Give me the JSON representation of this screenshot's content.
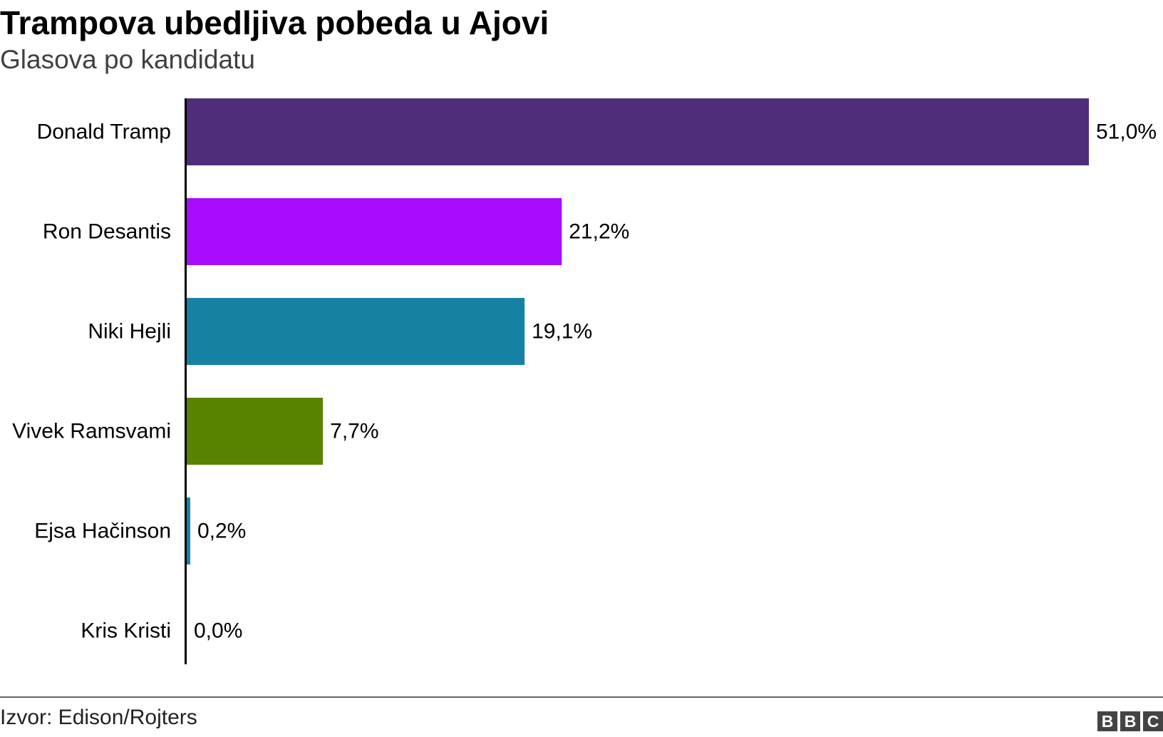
{
  "header": {
    "title": "Trampova ubedljiva pobeda u Ajovi",
    "subtitle": "Glasova po kandidatu"
  },
  "footer": {
    "source": "Izvor: Edison/Rojters",
    "logo": [
      "B",
      "B",
      "C"
    ]
  },
  "chart_data": {
    "type": "bar",
    "orientation": "horizontal",
    "title": "Trampova ubedljiva pobeda u Ajovi",
    "subtitle": "Glasova po kandidatu",
    "categories": [
      "Donald Tramp",
      "Ron Desantis",
      "Niki Hejli",
      "Vivek Ramsvami",
      "Ejsa Hačinson",
      "Kris Kristi"
    ],
    "values": [
      51.0,
      21.2,
      19.1,
      7.7,
      0.2,
      0.0
    ],
    "value_labels": [
      "51,0%",
      "21,2%",
      "19,1%",
      "7,7%",
      "0,2%",
      "0,0%"
    ],
    "colors": [
      "#4f2d7a",
      "#a80cff",
      "#1682a3",
      "#588300",
      "#1682a3",
      "#1682a3"
    ],
    "xlim": [
      0,
      51.0
    ],
    "unit": "%",
    "grid": false,
    "legend": "none"
  }
}
